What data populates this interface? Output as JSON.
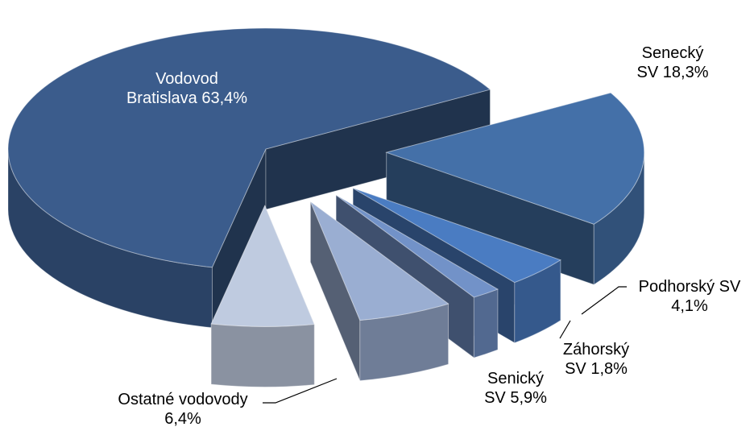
{
  "chart_data": {
    "type": "pie3d",
    "categories": [
      "Vodovod Bratislava",
      "Senecký SV",
      "Podhorský SV",
      "Záhorský SV",
      "Senický SV",
      "Ostatné vodovody"
    ],
    "values": [
      63.4,
      18.3,
      4.1,
      1.8,
      5.9,
      6.4
    ],
    "value_labels": [
      "63,4%",
      "18,3%",
      "4,1%",
      "1,8%",
      "5,9%",
      "6,4%"
    ],
    "colors": [
      "#3b5c8c",
      "#4470a8",
      "#4a7cc2",
      "#7292c8",
      "#9aaed2",
      "#bfcbe0"
    ]
  }
}
